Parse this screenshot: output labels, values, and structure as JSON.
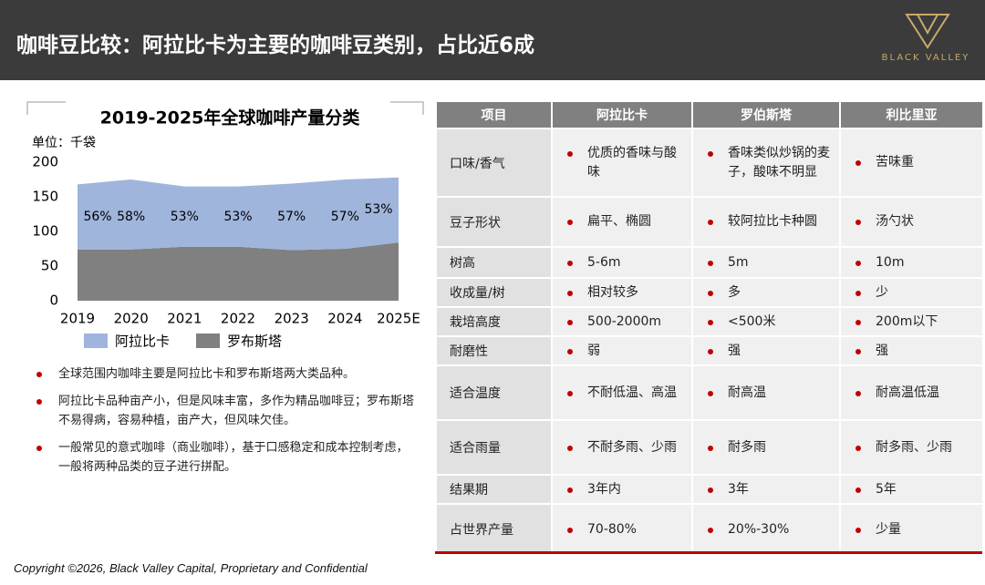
{
  "header": {
    "title": "咖啡豆比较：阿拉比卡为主要的咖啡豆类别，占比近6成",
    "logo": "BLACK VALLEY"
  },
  "chart_data": {
    "type": "stacked-area",
    "title": "2019-2025年全球咖啡产量分类",
    "y_label": "单位：千袋",
    "categories": [
      "2019",
      "2020",
      "2021",
      "2022",
      "2023",
      "2024",
      "2025E"
    ],
    "series": [
      {
        "name": "罗布斯塔",
        "color": "#808080",
        "values": [
          74,
          74,
          78,
          78,
          73,
          75,
          84
        ]
      },
      {
        "name": "阿拉比卡",
        "color": "#9fb5dc",
        "values": [
          94,
          101,
          87,
          87,
          96,
          100,
          94
        ]
      }
    ],
    "annotations": [
      "56%",
      "58%",
      "53%",
      "53%",
      "57%",
      "57%",
      "53%"
    ],
    "ylim": [
      0,
      200
    ],
    "yticks": [
      0,
      50,
      100,
      150,
      200
    ],
    "grid": false
  },
  "bullets": [
    "全球范围内咖啡主要是阿拉比卡和罗布斯塔两大类品种。",
    "阿拉比卡品种亩产小，但是风味丰富，多作为精品咖啡豆；罗布斯塔不易得病，容易种植，亩产大，但风味欠佳。",
    "一般常见的意式咖啡（商业咖啡），基于口感稳定和成本控制考虑，一般将两种品类的豆子进行拼配。"
  ],
  "table": {
    "header": [
      "项目",
      "阿拉比卡",
      "罗伯斯塔",
      "利比里亚"
    ],
    "rows": [
      [
        "口味/香气",
        "优质的香味与酸味",
        "香味类似炒锅的麦子，酸味不明显",
        "苦味重"
      ],
      [
        "豆子形状",
        "扁平、椭圆",
        "较阿拉比卡种圆",
        "汤勺状"
      ],
      [
        "树高",
        "5-6m",
        "5m",
        "10m"
      ],
      [
        "收成量/树",
        "相对较多",
        "多",
        "少"
      ],
      [
        "栽培高度",
        "500-2000m",
        "<500米",
        "200m以下"
      ],
      [
        "耐磨性",
        "弱",
        "强",
        "强"
      ],
      [
        "适合温度",
        "不耐低温、高温",
        "耐高温",
        "耐高温低温"
      ],
      [
        "适合雨量",
        "不耐多雨、少雨",
        "耐多雨",
        "耐多雨、少雨"
      ],
      [
        "结果期",
        "3年内",
        "3年",
        "5年"
      ],
      [
        "占世界产量",
        "70-80%",
        "20%-30%",
        "少量"
      ]
    ]
  },
  "footer": "Copyright ©2026, Black Valley Capital, Proprietary and Confidential"
}
